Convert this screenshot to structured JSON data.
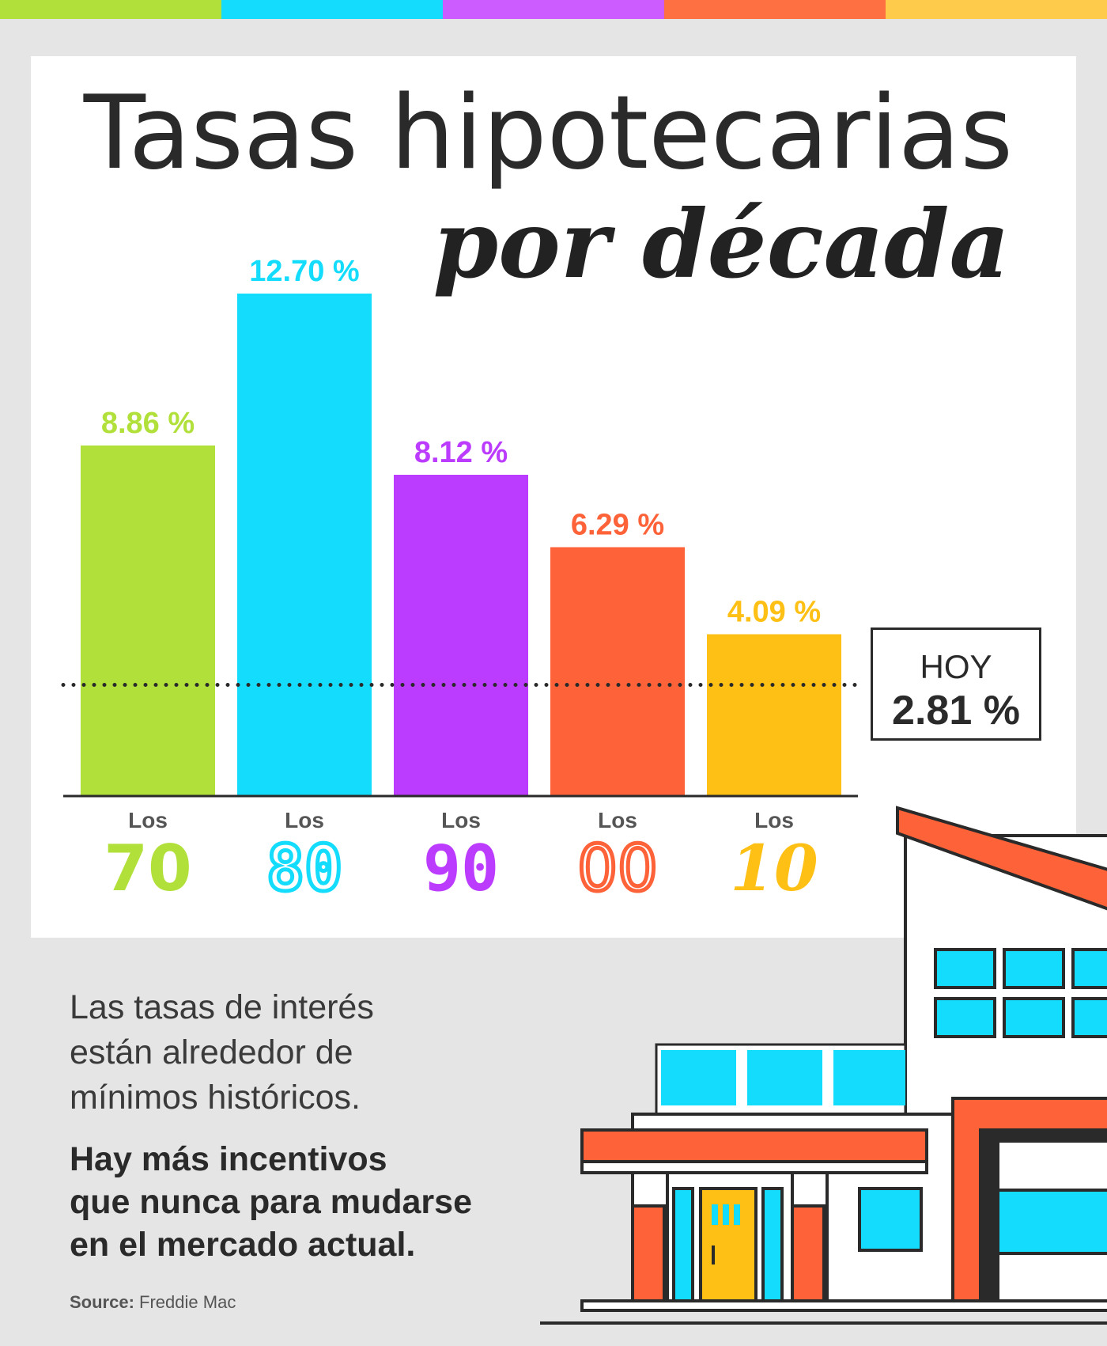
{
  "colors": {
    "green": "#b2e03a",
    "cyan": "#14dcfc",
    "purple": "#bb3bfe",
    "orange": "#fe6239",
    "yellow": "#fec014",
    "dark": "#2a2a2a"
  },
  "title": {
    "line1": "Tasas hipotecarias",
    "line2": "por década"
  },
  "chart_data": {
    "type": "bar",
    "categories": [
      "Los 70",
      "Los 80",
      "Los 90",
      "Los 00",
      "Los 10"
    ],
    "category_prefix": "Los",
    "category_numbers": [
      "70",
      "80",
      "90",
      "00",
      "10"
    ],
    "values": [
      8.86,
      12.7,
      8.12,
      6.29,
      4.09
    ],
    "value_labels": [
      "8.86 %",
      "12.70 %",
      "8.12 %",
      "6.29 %",
      "4.09 %"
    ],
    "bar_colors": [
      "#b2e03a",
      "#14dcfc",
      "#bb3bfe",
      "#fe6239",
      "#fec014"
    ],
    "reference_line": {
      "value": 2.81,
      "label": "HOY",
      "value_label": "2.81 %",
      "style": "dotted"
    },
    "ylim": [
      0,
      12.7
    ]
  },
  "body": {
    "light_line1": "Las tasas de interés",
    "light_line2": "están alrededor de",
    "light_line3": "mínimos históricos.",
    "bold_line1": "Hay más incentivos",
    "bold_line2": "que nunca para mudarse",
    "bold_line3": "en el mercado actual."
  },
  "source": {
    "label": "Source:",
    "name": "Freddie Mac"
  }
}
